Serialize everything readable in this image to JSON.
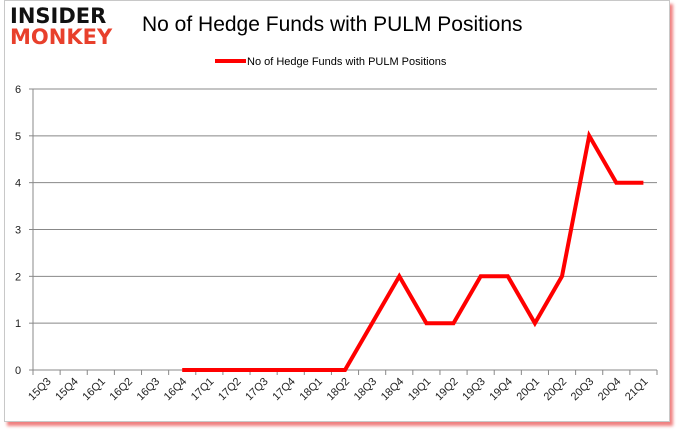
{
  "logo": {
    "line1": "INSIDER",
    "line2": "MONKEY"
  },
  "title": "No of Hedge Funds with PULM Positions",
  "legend": {
    "label": "No of Hedge Funds with PULM Positions",
    "color": "#ff0000"
  },
  "chart_data": {
    "type": "line",
    "title": "No of Hedge Funds with PULM Positions",
    "xlabel": "",
    "ylabel": "",
    "ylim": [
      0,
      6
    ],
    "yticks": [
      0,
      1,
      2,
      3,
      4,
      5,
      6
    ],
    "grid": true,
    "legend_position": "top",
    "categories": [
      "15Q3",
      "15Q4",
      "16Q1",
      "16Q2",
      "16Q3",
      "16Q4",
      "17Q1",
      "17Q2",
      "17Q3",
      "17Q4",
      "18Q1",
      "18Q2",
      "18Q3",
      "18Q4",
      "19Q1",
      "19Q2",
      "19Q3",
      "19Q4",
      "20Q1",
      "20Q2",
      "20Q3",
      "20Q4",
      "21Q1"
    ],
    "series": [
      {
        "name": "No of Hedge Funds with PULM Positions",
        "color": "#ff0000",
        "values": [
          null,
          null,
          null,
          null,
          null,
          0,
          0,
          0,
          0,
          0,
          0,
          0,
          1,
          2,
          1,
          1,
          2,
          2,
          1,
          2,
          5,
          4,
          4
        ]
      }
    ]
  }
}
